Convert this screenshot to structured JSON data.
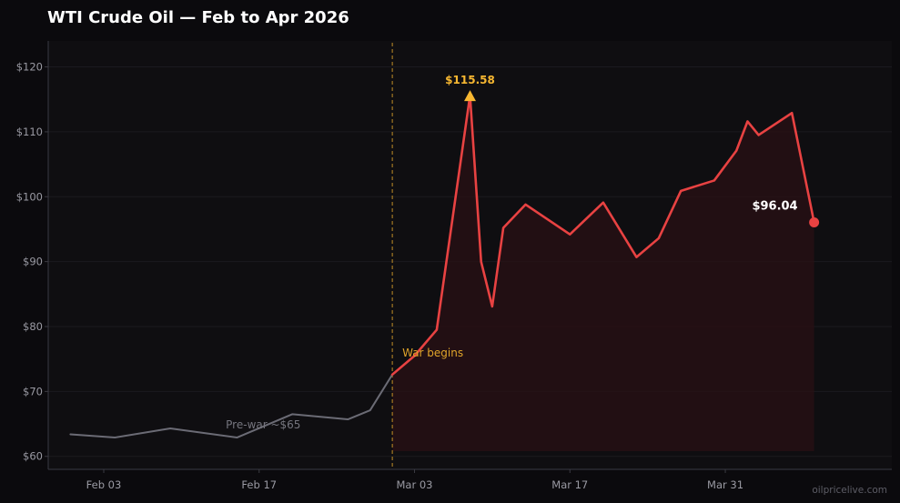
{
  "chart_data": {
    "type": "line",
    "title": "WTI Crude Oil — Feb to Apr 2026",
    "xlabel": "",
    "ylabel": "",
    "xlim": [
      "2026-01-29",
      "2026-04-15"
    ],
    "ylim": [
      58,
      124
    ],
    "grid": true,
    "x_ticks": [
      {
        "date": "2026-02-03",
        "label": "Feb 03"
      },
      {
        "date": "2026-02-17",
        "label": "Feb 17"
      },
      {
        "date": "2026-03-03",
        "label": "Mar 03"
      },
      {
        "date": "2026-03-17",
        "label": "Mar 17"
      },
      {
        "date": "2026-03-31",
        "label": "Mar 31"
      }
    ],
    "y_ticks": [
      {
        "value": 60,
        "label": "$60"
      },
      {
        "value": 70,
        "label": "$70"
      },
      {
        "value": 80,
        "label": "$80"
      },
      {
        "value": 90,
        "label": "$90"
      },
      {
        "value": 100,
        "label": "$100"
      },
      {
        "value": 110,
        "label": "$110"
      },
      {
        "value": 120,
        "label": "$120"
      }
    ],
    "series": [
      {
        "color": "#6b6b75",
        "points": [
          {
            "x": "2026-01-31",
            "y": 63.4
          },
          {
            "x": "2026-02-04",
            "y": 62.9
          },
          {
            "x": "2026-02-09",
            "y": 64.3
          },
          {
            "x": "2026-02-15",
            "y": 62.9
          },
          {
            "x": "2026-02-20",
            "y": 66.5
          },
          {
            "x": "2026-02-25",
            "y": 65.7
          },
          {
            "x": "2026-02-27",
            "y": 67.1
          },
          {
            "x": "2026-03-01",
            "y": 72.6
          }
        ]
      },
      {
        "color": "#e84242",
        "fill": true,
        "points": [
          {
            "x": "2026-03-01",
            "y": 72.6
          },
          {
            "x": "2026-03-03",
            "y": 75.5
          },
          {
            "x": "2026-03-05",
            "y": 79.5
          },
          {
            "x": "2026-03-08",
            "y": 115.6
          },
          {
            "x": "2026-03-09",
            "y": 90.0
          },
          {
            "x": "2026-03-10",
            "y": 83.1
          },
          {
            "x": "2026-03-11",
            "y": 95.2
          },
          {
            "x": "2026-03-13",
            "y": 98.8
          },
          {
            "x": "2026-03-17",
            "y": 94.2
          },
          {
            "x": "2026-03-20",
            "y": 99.1
          },
          {
            "x": "2026-03-23",
            "y": 90.7
          },
          {
            "x": "2026-03-25",
            "y": 93.6
          },
          {
            "x": "2026-03-27",
            "y": 100.9
          },
          {
            "x": "2026-03-30",
            "y": 102.5
          },
          {
            "x": "2026-04-01",
            "y": 107.1
          },
          {
            "x": "2026-04-02",
            "y": 111.6
          },
          {
            "x": "2026-04-03",
            "y": 109.5
          },
          {
            "x": "2026-04-06",
            "y": 112.9
          },
          {
            "x": "2026-04-08",
            "y": 96.04
          }
        ]
      }
    ],
    "annotations": {
      "war_line": {
        "x": "2026-03-01",
        "label": "War begins",
        "color": "#e0a42a"
      },
      "pre_war": {
        "x": "2026-02-14",
        "y": 65,
        "label": "Pre-war ~$65",
        "color": "#75757e"
      },
      "peak": {
        "x": "2026-03-08",
        "y": 115.58,
        "label": "$115.58",
        "color": "#f7b731"
      },
      "last": {
        "x": "2026-04-08",
        "y": 96.04,
        "label": "$96.04",
        "color": "#e84242"
      }
    },
    "source": "oilpricelive.com"
  },
  "colors": {
    "background": "#0b0a0d",
    "plot_background": "#0f0e11",
    "grid": "#1b1a1f",
    "axis": "#3a3a42",
    "fill": "#2a1014"
  }
}
